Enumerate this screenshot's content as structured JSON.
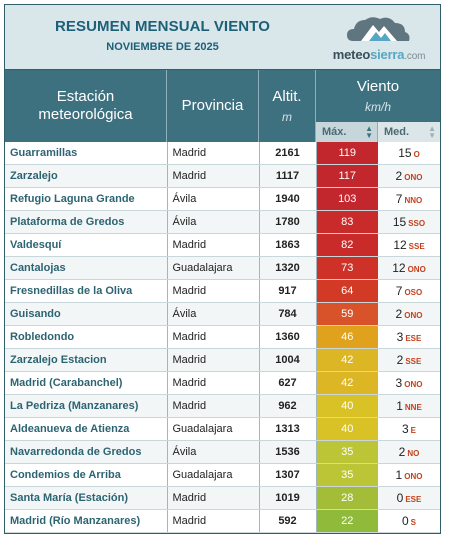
{
  "header": {
    "title": "RESUMEN MENSUAL VIENTO",
    "subtitle": "NOVIEMBRE DE 2025",
    "logo": {
      "part1": "meteo",
      "part2": "sierra",
      "part3": ".com",
      "icon": "cloud-mountain-icon"
    }
  },
  "columns": {
    "estacion": "Estación meteorológica",
    "provincia": "Provincia",
    "altitud": "Altit.",
    "altitud_unit": "m",
    "viento": "Viento",
    "viento_unit": "km/h",
    "max": "Máx.",
    "med": "Med."
  },
  "colors": {
    "header_bg": "#3e7180",
    "max_scale": {
      "high": "#c1272d",
      "mid": "#e0a21d",
      "low": "#8fba3a"
    }
  },
  "rows": [
    {
      "station": "Guarramillas",
      "province": "Madrid",
      "alt": "2161",
      "max": "119",
      "max_color": "#c1272d",
      "med": "15",
      "dir": "O"
    },
    {
      "station": "Zarzalejo",
      "province": "Madrid",
      "alt": "1117",
      "max": "117",
      "max_color": "#c1272d",
      "med": "2",
      "dir": "ONO"
    },
    {
      "station": "Refugio Laguna Grande",
      "province": "Ávila",
      "alt": "1940",
      "max": "103",
      "max_color": "#c1272d",
      "med": "7",
      "dir": "NNO"
    },
    {
      "station": "Plataforma de Gredos",
      "province": "Ávila",
      "alt": "1780",
      "max": "83",
      "max_color": "#c92a2a",
      "med": "15",
      "dir": "SSO"
    },
    {
      "station": "Valdesquí",
      "province": "Madrid",
      "alt": "1863",
      "max": "82",
      "max_color": "#c92a2a",
      "med": "12",
      "dir": "SSE"
    },
    {
      "station": "Cantalojas",
      "province": "Guadalajara",
      "alt": "1320",
      "max": "73",
      "max_color": "#cd3128",
      "med": "12",
      "dir": "ONO"
    },
    {
      "station": "Fresnedillas de la Oliva",
      "province": "Madrid",
      "alt": "917",
      "max": "64",
      "max_color": "#d23a26",
      "med": "7",
      "dir": "OSO"
    },
    {
      "station": "Guisando",
      "province": "Ávila",
      "alt": "784",
      "max": "59",
      "max_color": "#d9532a",
      "med": "2",
      "dir": "ONO"
    },
    {
      "station": "Robledondo",
      "province": "Madrid",
      "alt": "1360",
      "max": "46",
      "max_color": "#e0a21d",
      "med": "3",
      "dir": "ESE"
    },
    {
      "station": "Zarzalejo Estacion",
      "province": "Madrid",
      "alt": "1004",
      "max": "42",
      "max_color": "#dcb624",
      "med": "2",
      "dir": "SSE"
    },
    {
      "station": "Madrid (Carabanchel)",
      "province": "Madrid",
      "alt": "627",
      "max": "42",
      "max_color": "#dcb624",
      "med": "3",
      "dir": "ONO"
    },
    {
      "station": "La Pedriza (Manzanares)",
      "province": "Madrid",
      "alt": "962",
      "max": "40",
      "max_color": "#d8c225",
      "med": "1",
      "dir": "NNE"
    },
    {
      "station": "Aldeanueva de Atienza",
      "province": "Guadalajara",
      "alt": "1313",
      "max": "40",
      "max_color": "#d8c225",
      "med": "3",
      "dir": "E"
    },
    {
      "station": "Navarredonda de Gredos",
      "province": "Ávila",
      "alt": "1536",
      "max": "35",
      "max_color": "#bcc535",
      "med": "2",
      "dir": "NO"
    },
    {
      "station": "Condemios de Arriba",
      "province": "Guadalajara",
      "alt": "1307",
      "max": "35",
      "max_color": "#bcc535",
      "med": "1",
      "dir": "ONO"
    },
    {
      "station": "Santa María (Estación)",
      "province": "Madrid",
      "alt": "1019",
      "max": "28",
      "max_color": "#a3bd38",
      "med": "0",
      "dir": "ESE"
    },
    {
      "station": "Madrid (Río Manzanares)",
      "province": "Madrid",
      "alt": "592",
      "max": "22",
      "max_color": "#8fba3a",
      "med": "0",
      "dir": "S"
    }
  ]
}
